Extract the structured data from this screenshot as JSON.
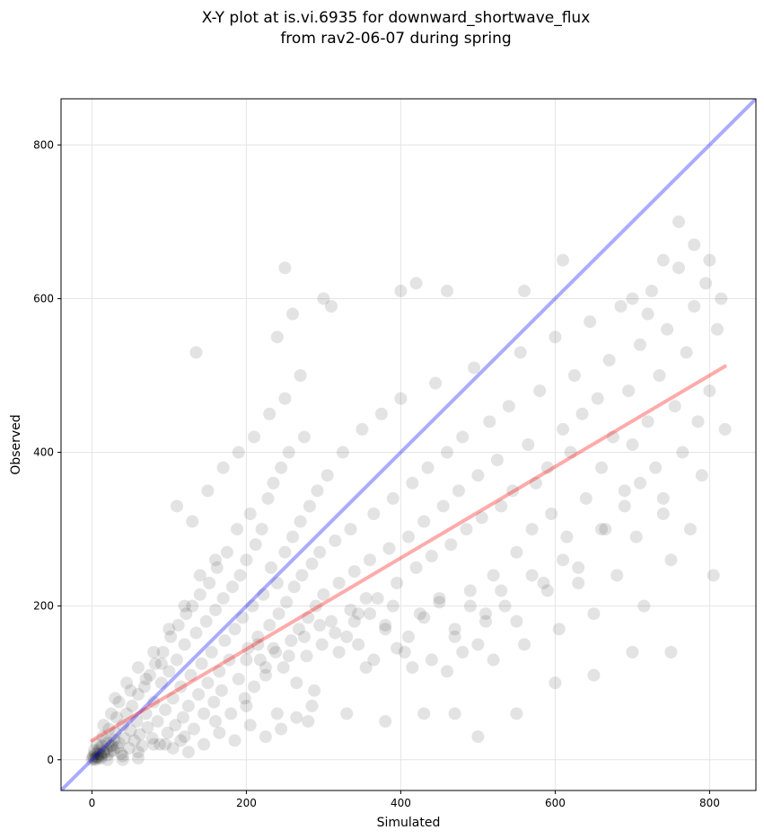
{
  "chart_data": {
    "type": "scatter",
    "title_lines": [
      "X-Y plot at is.vi.6935 for downward_shortwave_flux",
      "from rav2-06-07 during spring"
    ],
    "xlabel": "Simulated",
    "ylabel": "Observed",
    "xlim": [
      -40,
      860
    ],
    "ylim": [
      -40,
      860
    ],
    "xticks": [
      0,
      200,
      400,
      600,
      800
    ],
    "yticks": [
      0,
      200,
      400,
      600,
      800
    ],
    "tick_labels_x": [
      "0",
      "200",
      "400",
      "600",
      "800"
    ],
    "tick_labels_y": [
      "0",
      "200",
      "400",
      "600",
      "800"
    ],
    "grid": true,
    "colors": {
      "points": "#000000",
      "one_to_one_line": "#0000ff",
      "fit_line": "#ff0000",
      "grid": "#e5e5e5"
    },
    "lines": [
      {
        "role": "one-to-one",
        "x": [
          -40,
          860
        ],
        "y": [
          -40,
          860
        ]
      },
      {
        "role": "linear-fit",
        "x": [
          0,
          820
        ],
        "y": [
          25,
          512
        ]
      }
    ],
    "points": [
      [
        0,
        0
      ],
      [
        2,
        5
      ],
      [
        3,
        12
      ],
      [
        5,
        3
      ],
      [
        6,
        20
      ],
      [
        8,
        8
      ],
      [
        10,
        15
      ],
      [
        12,
        2
      ],
      [
        14,
        30
      ],
      [
        15,
        10
      ],
      [
        18,
        25
      ],
      [
        20,
        6
      ],
      [
        22,
        40
      ],
      [
        25,
        18
      ],
      [
        28,
        12
      ],
      [
        30,
        35
      ],
      [
        32,
        55
      ],
      [
        35,
        22
      ],
      [
        38,
        8
      ],
      [
        40,
        45
      ],
      [
        42,
        28
      ],
      [
        45,
        60
      ],
      [
        48,
        15
      ],
      [
        50,
        38
      ],
      [
        52,
        70
      ],
      [
        55,
        25
      ],
      [
        58,
        50
      ],
      [
        60,
        85
      ],
      [
        62,
        33
      ],
      [
        65,
        18
      ],
      [
        68,
        95
      ],
      [
        70,
        60
      ],
      [
        72,
        42
      ],
      [
        75,
        110
      ],
      [
        78,
        28
      ],
      [
        80,
        75
      ],
      [
        82,
        125
      ],
      [
        85,
        50
      ],
      [
        88,
        20
      ],
      [
        90,
        100
      ],
      [
        92,
        140
      ],
      [
        95,
        65
      ],
      [
        98,
        35
      ],
      [
        100,
        115
      ],
      [
        102,
        160
      ],
      [
        105,
        80
      ],
      [
        108,
        45
      ],
      [
        110,
        130
      ],
      [
        112,
        175
      ],
      [
        115,
        95
      ],
      [
        118,
        55
      ],
      [
        120,
        150
      ],
      [
        122,
        190
      ],
      [
        125,
        70
      ],
      [
        128,
        110
      ],
      [
        130,
        200
      ],
      [
        132,
        40
      ],
      [
        135,
        165
      ],
      [
        138,
        85
      ],
      [
        140,
        215
      ],
      [
        142,
        125
      ],
      [
        145,
        60
      ],
      [
        148,
        180
      ],
      [
        150,
        100
      ],
      [
        152,
        230
      ],
      [
        155,
        140
      ],
      [
        158,
        75
      ],
      [
        160,
        195
      ],
      [
        162,
        250
      ],
      [
        165,
        115
      ],
      [
        168,
        90
      ],
      [
        170,
        210
      ],
      [
        172,
        155
      ],
      [
        175,
        270
      ],
      [
        178,
        130
      ],
      [
        180,
        60
      ],
      [
        182,
        225
      ],
      [
        185,
        170
      ],
      [
        188,
        300
      ],
      [
        190,
        105
      ],
      [
        192,
        240
      ],
      [
        195,
        185
      ],
      [
        198,
        80
      ],
      [
        200,
        260
      ],
      [
        202,
        145
      ],
      [
        205,
        320
      ],
      [
        208,
        200
      ],
      [
        210,
        95
      ],
      [
        212,
        280
      ],
      [
        215,
        160
      ],
      [
        218,
        130
      ],
      [
        220,
        300
      ],
      [
        222,
        215
      ],
      [
        225,
        110
      ],
      [
        228,
        340
      ],
      [
        230,
        175
      ],
      [
        232,
        250
      ],
      [
        235,
        360
      ],
      [
        238,
        140
      ],
      [
        240,
        230
      ],
      [
        242,
        190
      ],
      [
        245,
        380
      ],
      [
        248,
        120
      ],
      [
        250,
        270
      ],
      [
        252,
        205
      ],
      [
        255,
        400
      ],
      [
        258,
        155
      ],
      [
        260,
        290
      ],
      [
        262,
        225
      ],
      [
        265,
        100
      ],
      [
        268,
        170
      ],
      [
        270,
        310
      ],
      [
        272,
        240
      ],
      [
        275,
        420
      ],
      [
        278,
        135
      ],
      [
        280,
        185
      ],
      [
        282,
        330
      ],
      [
        285,
        255
      ],
      [
        288,
        90
      ],
      [
        290,
        200
      ],
      [
        292,
        350
      ],
      [
        295,
        270
      ],
      [
        298,
        150
      ],
      [
        300,
        215
      ],
      [
        305,
        370
      ],
      [
        310,
        180
      ],
      [
        315,
        285
      ],
      [
        320,
        230
      ],
      [
        325,
        400
      ],
      [
        330,
        160
      ],
      [
        335,
        300
      ],
      [
        340,
        245
      ],
      [
        345,
        190
      ],
      [
        350,
        430
      ],
      [
        355,
        120
      ],
      [
        360,
        260
      ],
      [
        365,
        320
      ],
      [
        370,
        210
      ],
      [
        375,
        450
      ],
      [
        380,
        175
      ],
      [
        385,
        275
      ],
      [
        390,
        340
      ],
      [
        395,
        230
      ],
      [
        400,
        470
      ],
      [
        405,
        140
      ],
      [
        410,
        290
      ],
      [
        415,
        360
      ],
      [
        420,
        250
      ],
      [
        425,
        190
      ],
      [
        430,
        310
      ],
      [
        435,
        380
      ],
      [
        440,
        265
      ],
      [
        445,
        490
      ],
      [
        450,
        205
      ],
      [
        455,
        330
      ],
      [
        460,
        400
      ],
      [
        465,
        280
      ],
      [
        470,
        160
      ],
      [
        475,
        350
      ],
      [
        480,
        420
      ],
      [
        485,
        300
      ],
      [
        490,
        220
      ],
      [
        495,
        510
      ],
      [
        500,
        370
      ],
      [
        505,
        315
      ],
      [
        510,
        180
      ],
      [
        515,
        440
      ],
      [
        520,
        240
      ],
      [
        525,
        390
      ],
      [
        530,
        330
      ],
      [
        535,
        200
      ],
      [
        540,
        460
      ],
      [
        545,
        350
      ],
      [
        550,
        270
      ],
      [
        555,
        530
      ],
      [
        560,
        150
      ],
      [
        565,
        410
      ],
      [
        570,
        300
      ],
      [
        575,
        360
      ],
      [
        580,
        480
      ],
      [
        585,
        230
      ],
      [
        590,
        380
      ],
      [
        595,
        320
      ],
      [
        600,
        550
      ],
      [
        605,
        170
      ],
      [
        610,
        430
      ],
      [
        615,
        290
      ],
      [
        620,
        400
      ],
      [
        625,
        500
      ],
      [
        630,
        250
      ],
      [
        635,
        450
      ],
      [
        640,
        340
      ],
      [
        645,
        570
      ],
      [
        650,
        190
      ],
      [
        655,
        470
      ],
      [
        660,
        380
      ],
      [
        665,
        300
      ],
      [
        670,
        520
      ],
      [
        675,
        420
      ],
      [
        680,
        240
      ],
      [
        685,
        590
      ],
      [
        690,
        350
      ],
      [
        695,
        480
      ],
      [
        700,
        410
      ],
      [
        705,
        290
      ],
      [
        710,
        540
      ],
      [
        715,
        200
      ],
      [
        720,
        440
      ],
      [
        725,
        610
      ],
      [
        730,
        380
      ],
      [
        735,
        500
      ],
      [
        740,
        320
      ],
      [
        745,
        560
      ],
      [
        750,
        260
      ],
      [
        755,
        460
      ],
      [
        760,
        640
      ],
      [
        765,
        400
      ],
      [
        770,
        530
      ],
      [
        775,
        300
      ],
      [
        780,
        590
      ],
      [
        785,
        440
      ],
      [
        790,
        370
      ],
      [
        795,
        620
      ],
      [
        800,
        480
      ],
      [
        805,
        240
      ],
      [
        810,
        560
      ],
      [
        815,
        600
      ],
      [
        820,
        430
      ],
      [
        30,
        80
      ],
      [
        45,
        100
      ],
      [
        60,
        120
      ],
      [
        80,
        140
      ],
      [
        100,
        170
      ],
      [
        120,
        200
      ],
      [
        140,
        240
      ],
      [
        160,
        260
      ],
      [
        130,
        310
      ],
      [
        150,
        350
      ],
      [
        110,
        330
      ],
      [
        170,
        380
      ],
      [
        190,
        400
      ],
      [
        210,
        420
      ],
      [
        230,
        450
      ],
      [
        250,
        470
      ],
      [
        270,
        500
      ],
      [
        240,
        550
      ],
      [
        260,
        580
      ],
      [
        300,
        600
      ],
      [
        310,
        590
      ],
      [
        250,
        640
      ],
      [
        135,
        530
      ],
      [
        400,
        610
      ],
      [
        420,
        620
      ],
      [
        460,
        610
      ],
      [
        560,
        610
      ],
      [
        610,
        650
      ],
      [
        700,
        600
      ],
      [
        720,
        580
      ],
      [
        740,
        650
      ],
      [
        760,
        700
      ],
      [
        780,
        670
      ],
      [
        800,
        650
      ],
      [
        500,
        30
      ],
      [
        550,
        60
      ],
      [
        600,
        100
      ],
      [
        650,
        110
      ],
      [
        700,
        140
      ],
      [
        750,
        140
      ],
      [
        40,
        5
      ],
      [
        60,
        10
      ],
      [
        80,
        20
      ],
      [
        120,
        30
      ],
      [
        160,
        50
      ],
      [
        200,
        70
      ],
      [
        240,
        60
      ],
      [
        280,
        50
      ],
      [
        330,
        60
      ],
      [
        380,
        50
      ],
      [
        430,
        60
      ],
      [
        470,
        60
      ],
      [
        15,
        45
      ],
      [
        25,
        60
      ],
      [
        35,
        75
      ],
      [
        50,
        90
      ],
      [
        70,
        105
      ],
      [
        90,
        125
      ],
      [
        95,
        20
      ],
      [
        105,
        15
      ],
      [
        115,
        25
      ],
      [
        125,
        10
      ],
      [
        145,
        20
      ],
      [
        165,
        35
      ],
      [
        185,
        25
      ],
      [
        205,
        45
      ],
      [
        225,
        30
      ],
      [
        245,
        40
      ],
      [
        265,
        55
      ],
      [
        285,
        70
      ],
      [
        20,
        0
      ],
      [
        40,
        0
      ],
      [
        60,
        2
      ],
      [
        5,
        0
      ],
      [
        8,
        2
      ],
      [
        12,
        5
      ],
      [
        3,
        1
      ],
      [
        1,
        3
      ],
      [
        4,
        8
      ],
      [
        7,
        4
      ],
      [
        9,
        12
      ],
      [
        11,
        7
      ],
      [
        13,
        18
      ],
      [
        16,
        9
      ],
      [
        19,
        14
      ],
      [
        21,
        22
      ],
      [
        24,
        11
      ],
      [
        27,
        19
      ],
      [
        29,
        26
      ],
      [
        33,
        16
      ],
      [
        340,
        180
      ],
      [
        360,
        190
      ],
      [
        380,
        170
      ],
      [
        390,
        200
      ],
      [
        410,
        160
      ],
      [
        430,
        185
      ],
      [
        450,
        210
      ],
      [
        470,
        170
      ],
      [
        490,
        200
      ],
      [
        510,
        190
      ],
      [
        530,
        220
      ],
      [
        550,
        180
      ],
      [
        570,
        240
      ],
      [
        590,
        220
      ],
      [
        610,
        260
      ],
      [
        630,
        230
      ],
      [
        660,
        300
      ],
      [
        690,
        330
      ],
      [
        710,
        360
      ],
      [
        740,
        340
      ],
      [
        320,
        140
      ],
      [
        345,
        150
      ],
      [
        365,
        130
      ],
      [
        395,
        145
      ],
      [
        415,
        120
      ],
      [
        440,
        130
      ],
      [
        460,
        115
      ],
      [
        480,
        140
      ],
      [
        500,
        150
      ],
      [
        520,
        130
      ],
      [
        200,
        130
      ],
      [
        215,
        150
      ],
      [
        225,
        120
      ],
      [
        235,
        145
      ],
      [
        255,
        135
      ],
      [
        275,
        160
      ],
      [
        295,
        175
      ],
      [
        315,
        165
      ],
      [
        335,
        195
      ],
      [
        355,
        210
      ]
    ]
  }
}
